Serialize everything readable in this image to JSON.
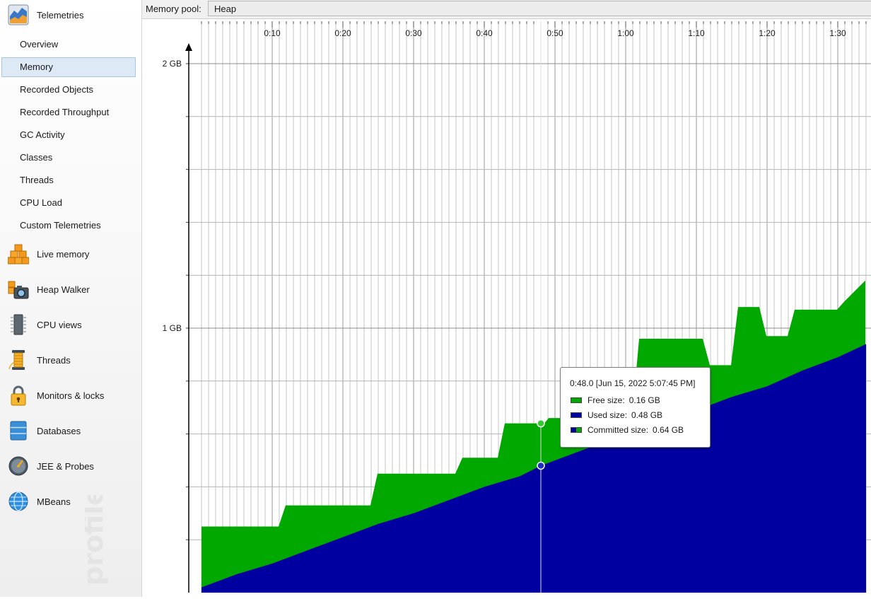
{
  "sidebar": {
    "telemetries": {
      "label": "Telemetries",
      "icon": "telemetries-chart-icon"
    },
    "sub_items": [
      "Overview",
      "Memory",
      "Recorded Objects",
      "Recorded Throughput",
      "GC Activity",
      "Classes",
      "Threads",
      "CPU Load",
      "Custom Telemetries"
    ],
    "selected": "Memory",
    "sections": [
      {
        "label": "Live memory",
        "icon": "live-memory-cubes-icon"
      },
      {
        "label": "Heap Walker",
        "icon": "heap-walker-camera-icon"
      },
      {
        "label": "CPU views",
        "icon": "cpu-chip-icon"
      },
      {
        "label": "Threads",
        "icon": "threads-spool-icon"
      },
      {
        "label": "Monitors & locks",
        "icon": "padlock-icon"
      },
      {
        "label": "Databases",
        "icon": "database-icon"
      },
      {
        "label": "JEE & Probes",
        "icon": "gauge-icon"
      },
      {
        "label": "MBeans",
        "icon": "globe-icon"
      }
    ],
    "watermark": "profiler"
  },
  "toolbar": {
    "pool_label": "Memory pool:",
    "pool_value": "Heap"
  },
  "colors": {
    "free": "#00a800",
    "used": "#0000a0",
    "grid": "#b4b4b4"
  },
  "chart_data": {
    "type": "area",
    "stacked": true,
    "x_unit": "elapsed time (m:ss)",
    "x_range_seconds": [
      0,
      94
    ],
    "x_ticks": [
      "0:10",
      "0:20",
      "0:30",
      "0:40",
      "0:50",
      "1:00",
      "1:10",
      "1:20",
      "1:30"
    ],
    "y_unit": "GB",
    "y_range": [
      0,
      2.05
    ],
    "y_ticks": [
      "1 GB",
      "2 GB"
    ],
    "series": [
      {
        "name": "Used size",
        "color": "#0000a0",
        "x": [
          0,
          5,
          10,
          15,
          20,
          25,
          30,
          35,
          40,
          45,
          48,
          50,
          55,
          60,
          65,
          70,
          75,
          80,
          85,
          90,
          94
        ],
        "y": [
          0.02,
          0.07,
          0.11,
          0.16,
          0.21,
          0.26,
          0.3,
          0.35,
          0.4,
          0.44,
          0.48,
          0.5,
          0.55,
          0.6,
          0.65,
          0.69,
          0.74,
          0.78,
          0.84,
          0.89,
          0.94
        ]
      },
      {
        "name": "Committed size",
        "color": "#00a800",
        "x": [
          0,
          10.9,
          11.9,
          23.9,
          24.9,
          35.9,
          36.9,
          41.9,
          42.9,
          48.5,
          49.1,
          60.9,
          61.9,
          70.9,
          71.9,
          74.9,
          75.9,
          78.9,
          79.9,
          82.9,
          83.9,
          89.9,
          90.9,
          93.9
        ],
        "y": [
          0.25,
          0.25,
          0.33,
          0.33,
          0.45,
          0.45,
          0.51,
          0.51,
          0.64,
          0.64,
          0.66,
          0.66,
          0.96,
          0.96,
          0.86,
          0.86,
          1.08,
          1.08,
          0.97,
          0.97,
          1.07,
          1.07,
          1.1,
          1.18
        ]
      }
    ],
    "cursor": {
      "x_seconds": 48,
      "free_gb": 0.16,
      "used_gb": 0.48,
      "committed_gb": 0.64
    }
  },
  "tooltip": {
    "title": "0:48.0 [Jun 15, 2022 5:07:45 PM]",
    "rows": [
      {
        "key": "Free size:",
        "value": "0.16 GB",
        "swatch": "free"
      },
      {
        "key": "Used size:",
        "value": "0.48 GB",
        "swatch": "used"
      },
      {
        "key": "Committed size:",
        "value": "0.64 GB",
        "swatch": "committed"
      }
    ]
  }
}
